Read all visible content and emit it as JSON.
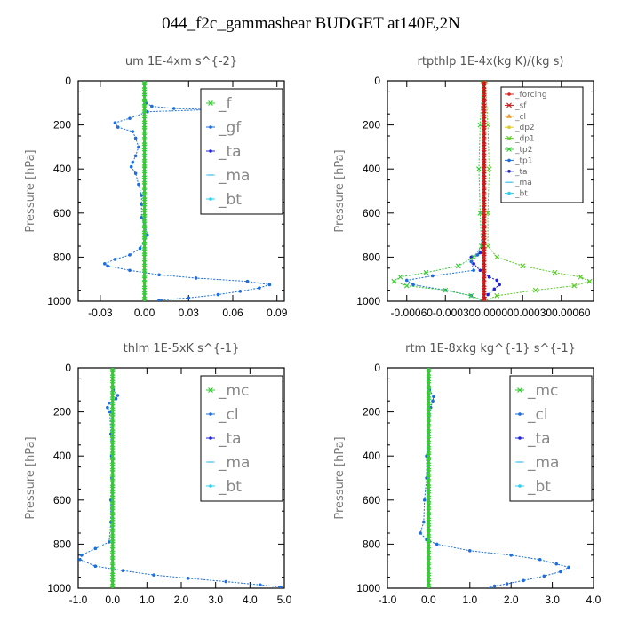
{
  "title": "044_f2c_gammashear  BUDGET at140E,2N",
  "chart_data": [
    {
      "type": "line",
      "title": "um  1E-4xm s^{-2}",
      "ylabel": "Pressure [hPa]",
      "ylim": [
        1000,
        0
      ],
      "xlim": [
        -0.045,
        0.095
      ],
      "xticks": [
        "-0.03",
        "0.00",
        "0.03",
        "0.06",
        "0.09"
      ],
      "xtick_values": [
        -0.03,
        0.0,
        0.03,
        0.06,
        0.09
      ],
      "yticks": [
        "0",
        "200",
        "400",
        "600",
        "800",
        "1000"
      ],
      "legend_size": "large",
      "series": [
        {
          "name": "_f",
          "color": "#33cc33",
          "marker": "cross",
          "points": [
            [
              0,
              0
            ],
            [
              0,
              100
            ],
            [
              0,
              200
            ],
            [
              0,
              300
            ],
            [
              0,
              400
            ],
            [
              0,
              500
            ],
            [
              0,
              600
            ],
            [
              0,
              700
            ],
            [
              0,
              800
            ],
            [
              0,
              900
            ],
            [
              0,
              1000
            ]
          ]
        },
        {
          "name": "_gf",
          "color": "#1a6ee0",
          "marker": "dot",
          "points": [
            [
              0,
              60
            ],
            [
              0.001,
              100
            ],
            [
              0.005,
              115
            ],
            [
              0.02,
              125
            ],
            [
              0.045,
              130
            ],
            [
              0.002,
              140
            ],
            [
              -0.01,
              170
            ],
            [
              -0.02,
              190
            ],
            [
              -0.018,
              210
            ],
            [
              -0.008,
              230
            ],
            [
              -0.006,
              260
            ],
            [
              -0.004,
              300
            ],
            [
              -0.006,
              340
            ],
            [
              -0.008,
              370
            ],
            [
              -0.009,
              390
            ],
            [
              -0.006,
              420
            ],
            [
              -0.004,
              470
            ],
            [
              -0.002,
              520
            ],
            [
              -0.002,
              560
            ],
            [
              -0.002,
              620
            ],
            [
              0,
              650
            ],
            [
              0.002,
              700
            ],
            [
              -0.003,
              760
            ],
            [
              -0.01,
              790
            ],
            [
              -0.02,
              810
            ],
            [
              -0.027,
              830
            ],
            [
              -0.025,
              840
            ],
            [
              -0.01,
              860
            ],
            [
              0.01,
              880
            ],
            [
              0.035,
              895
            ],
            [
              0.07,
              910
            ],
            [
              0.085,
              925
            ],
            [
              0.078,
              940
            ],
            [
              0.065,
              955
            ],
            [
              0.05,
              970
            ],
            [
              0.03,
              985
            ],
            [
              0.01,
              995
            ]
          ]
        },
        {
          "name": "_ta",
          "color": "#2222dd",
          "marker": "dot",
          "points": []
        },
        {
          "name": "_ma",
          "color": "#55c8f0",
          "marker": "dash",
          "points": []
        },
        {
          "name": "_bt",
          "color": "#2ad0f2",
          "marker": "dot",
          "points": []
        }
      ]
    },
    {
      "type": "line",
      "title": "rtpthlp  1E-4x(kg K)/(kg s)",
      "ylabel": "Pressure [hPa]",
      "ylim": [
        1000,
        0
      ],
      "xlim": [
        -0.00075,
        0.00085
      ],
      "xticks": [
        "-0.00060",
        "-0.00030",
        "0.00000",
        "0.00030",
        "0.00060"
      ],
      "xtick_values": [
        -0.0006,
        -0.0003,
        0.0,
        0.0003,
        0.0006
      ],
      "xticks_label": "-0.00060-0.000300.000000.000300.00060",
      "yticks": [
        "0",
        "200",
        "400",
        "600",
        "800",
        "1000"
      ],
      "legend_size": "small",
      "series": [
        {
          "name": "_forcing",
          "color": "#dd2222",
          "marker": "dot",
          "points": [
            [
              0,
              0
            ],
            [
              0,
              200
            ],
            [
              0,
              400
            ],
            [
              0,
              600
            ],
            [
              0,
              800
            ],
            [
              0,
              1000
            ]
          ]
        },
        {
          "name": "_sf",
          "color": "#cc1111",
          "marker": "cross",
          "points": [
            [
              0,
              0
            ],
            [
              0,
              200
            ],
            [
              0,
              400
            ],
            [
              0,
              600
            ],
            [
              0,
              800
            ],
            [
              0,
              1000
            ]
          ]
        },
        {
          "name": "_cl",
          "color": "#ee9922",
          "marker": "tri",
          "points": []
        },
        {
          "name": "_dp2",
          "color": "#ddcc22",
          "marker": "dot",
          "points": []
        },
        {
          "name": "_dp1",
          "color": "#55cc22",
          "marker": "cross",
          "points": [
            [
              1e-05,
              0
            ],
            [
              3e-05,
              200
            ],
            [
              4e-05,
              400
            ],
            [
              3e-05,
              600
            ],
            [
              3e-05,
              750
            ],
            [
              0.0001,
              800
            ],
            [
              0.0003,
              840
            ],
            [
              0.00055,
              870
            ],
            [
              0.00075,
              890
            ],
            [
              0.00082,
              910
            ],
            [
              0.0007,
              930
            ],
            [
              0.0004,
              950
            ],
            [
              0.0001,
              975
            ],
            [
              0,
              1000
            ]
          ]
        },
        {
          "name": "_tp2",
          "color": "#33cc33",
          "marker": "cross",
          "points": [
            [
              -1e-05,
              0
            ],
            [
              -3e-05,
              200
            ],
            [
              -4e-05,
              400
            ],
            [
              -3e-05,
              600
            ],
            [
              -2e-05,
              750
            ],
            [
              -8e-05,
              800
            ],
            [
              -0.0002,
              840
            ],
            [
              -0.00045,
              870
            ],
            [
              -0.00065,
              890
            ],
            [
              -0.0007,
              910
            ],
            [
              -0.0006,
              930
            ],
            [
              -0.0003,
              950
            ],
            [
              -0.0001,
              975
            ],
            [
              0,
              1000
            ]
          ]
        },
        {
          "name": "_tp1",
          "color": "#1a6ee0",
          "marker": "dot",
          "points": [
            [
              0,
              700
            ],
            [
              -5e-05,
              790
            ],
            [
              -0.0001,
              820
            ],
            [
              -8e-05,
              860
            ],
            [
              -0.0004,
              885
            ],
            [
              -0.0006,
              905
            ],
            [
              -0.00055,
              925
            ],
            [
              -0.0003,
              950
            ],
            [
              -0.0001,
              975
            ],
            [
              0,
              1000
            ]
          ]
        },
        {
          "name": "_ta",
          "color": "#2222dd",
          "marker": "dot",
          "points": [
            [
              0,
              700
            ],
            [
              -3e-05,
              780
            ],
            [
              -0.0001,
              800
            ],
            [
              -8e-05,
              830
            ],
            [
              -3e-05,
              860
            ],
            [
              4e-05,
              890
            ],
            [
              0.0001,
              905
            ],
            [
              0.00012,
              925
            ],
            [
              8e-05,
              945
            ],
            [
              3e-05,
              970
            ],
            [
              0,
              1000
            ]
          ]
        },
        {
          "name": "_ma",
          "color": "#55c8f0",
          "marker": "dash",
          "points": []
        },
        {
          "name": "_bt",
          "color": "#2ad0f2",
          "marker": "dot",
          "points": []
        }
      ]
    },
    {
      "type": "line",
      "title": "thlm  1E-5xK s^{-1}",
      "ylabel": "Pressure [hPa]",
      "ylim": [
        1000,
        0
      ],
      "xlim": [
        -1.0,
        5.0
      ],
      "xticks": [
        "-1.0",
        "0.0",
        "1.0",
        "2.0",
        "3.0",
        "4.0",
        "5.0"
      ],
      "xtick_values": [
        -1,
        0,
        1,
        2,
        3,
        4,
        5
      ],
      "yticks": [
        "0",
        "200",
        "400",
        "600",
        "800",
        "1000"
      ],
      "legend_size": "large",
      "series": [
        {
          "name": "_mc",
          "color": "#33cc33",
          "marker": "cross",
          "points": [
            [
              0,
              0
            ],
            [
              0,
              200
            ],
            [
              0,
              400
            ],
            [
              0,
              600
            ],
            [
              0,
              800
            ],
            [
              0,
              1000
            ]
          ]
        },
        {
          "name": "_cl",
          "color": "#1a6ee0",
          "marker": "dot",
          "points": [
            [
              0,
              0
            ],
            [
              0.02,
              100
            ],
            [
              0.15,
              125
            ],
            [
              0.1,
              140
            ],
            [
              -0.1,
              160
            ],
            [
              -0.15,
              180
            ],
            [
              -0.08,
              200
            ],
            [
              -0.05,
              300
            ],
            [
              -0.03,
              400
            ],
            [
              -0.02,
              500
            ],
            [
              -0.05,
              600
            ],
            [
              -0.05,
              700
            ],
            [
              -0.1,
              790
            ],
            [
              -0.5,
              820
            ],
            [
              -0.9,
              850
            ],
            [
              -0.95,
              870
            ],
            [
              -0.5,
              900
            ],
            [
              0.3,
              920
            ],
            [
              1.2,
              940
            ],
            [
              2.2,
              955
            ],
            [
              3.3,
              970
            ],
            [
              4.3,
              985
            ],
            [
              4.9,
              995
            ]
          ]
        },
        {
          "name": "_ta",
          "color": "#2222dd",
          "marker": "dot",
          "points": []
        },
        {
          "name": "_ma",
          "color": "#55c8f0",
          "marker": "dash",
          "points": []
        },
        {
          "name": "_bt",
          "color": "#2ad0f2",
          "marker": "dot",
          "points": []
        }
      ]
    },
    {
      "type": "line",
      "title": "rtm  1E-8xkg kg^{-1} s^{-1}",
      "ylabel": "Pressure [hPa]",
      "ylim": [
        1000,
        0
      ],
      "xlim": [
        -1.0,
        4.0
      ],
      "xticks": [
        "-1.0",
        "0.0",
        "1.0",
        "2.0",
        "3.0",
        "4.0"
      ],
      "xtick_values": [
        -1,
        0,
        1,
        2,
        3,
        4
      ],
      "yticks": [
        "0",
        "200",
        "400",
        "600",
        "800",
        "1000"
      ],
      "legend_size": "large",
      "series": [
        {
          "name": "_mc",
          "color": "#33cc33",
          "marker": "cross",
          "points": [
            [
              0,
              0
            ],
            [
              0,
              200
            ],
            [
              0,
              400
            ],
            [
              0,
              600
            ],
            [
              0,
              800
            ],
            [
              0,
              1000
            ]
          ]
        },
        {
          "name": "_cl",
          "color": "#1a6ee0",
          "marker": "dot",
          "points": [
            [
              0,
              0
            ],
            [
              0.02,
              100
            ],
            [
              0.12,
              130
            ],
            [
              0.1,
              150
            ],
            [
              0.05,
              180
            ],
            [
              0,
              300
            ],
            [
              -0.05,
              400
            ],
            [
              -0.05,
              500
            ],
            [
              -0.1,
              600
            ],
            [
              -0.12,
              700
            ],
            [
              -0.2,
              750
            ],
            [
              -0.05,
              780
            ],
            [
              0.2,
              800
            ],
            [
              1.0,
              830
            ],
            [
              2.0,
              850
            ],
            [
              2.7,
              870
            ],
            [
              3.1,
              890
            ],
            [
              3.4,
              905
            ],
            [
              3.2,
              925
            ],
            [
              2.8,
              945
            ],
            [
              2.3,
              965
            ],
            [
              1.9,
              980
            ],
            [
              1.6,
              990
            ],
            [
              1.5,
              1000
            ]
          ]
        },
        {
          "name": "_ta",
          "color": "#2222dd",
          "marker": "dot",
          "points": []
        },
        {
          "name": "_ma",
          "color": "#55c8f0",
          "marker": "dash",
          "points": []
        },
        {
          "name": "_bt",
          "color": "#2ad0f2",
          "marker": "dot",
          "points": []
        }
      ]
    }
  ]
}
